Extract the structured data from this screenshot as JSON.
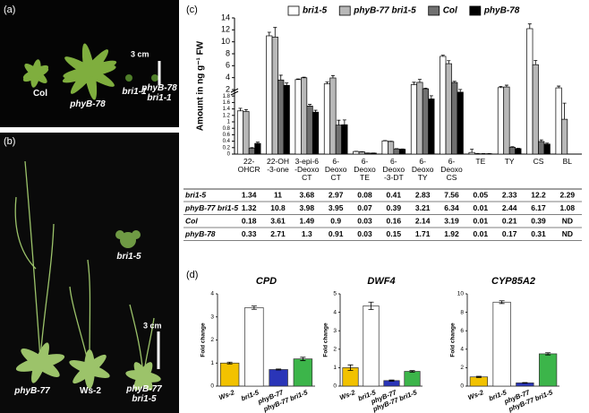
{
  "panel_a": {
    "label": "(a)",
    "plants": [
      "Col",
      "phyB-78",
      "bri1-1",
      "phyB-78\nbri1-1"
    ],
    "scale_bar": "3 cm"
  },
  "panel_b": {
    "label": "(b)",
    "plants": [
      "bri1-5",
      "phyB-77",
      "Ws-2",
      "phyB-77\nbri1-5"
    ],
    "scale_bar": "3 cm"
  },
  "panel_c_label": "(c)",
  "panel_d_label": "(d)",
  "chart_data": [
    {
      "type": "broken-bar",
      "ylabel": "Amount in ng g⁻¹ FW",
      "legend": "top",
      "categories": [
        "22-\nOHCR",
        "22-OH\n-3-one",
        "3-epi-6\n-Deoxo\nCT",
        "6-\nDeoxo\nCT",
        "6-\nDeoxo\nTE",
        "6-\nDeoxo\n-3-DT",
        "6-\nDeoxo\nTY",
        "6-\nDeoxo\nCS",
        "TE",
        "TY",
        "CS",
        "BL"
      ],
      "ylim": [
        0,
        14
      ],
      "axis_break": 2,
      "yticks_lower": [
        0,
        0.2,
        0.4,
        0.6,
        0.8,
        1,
        1.2,
        1.4,
        1.6,
        1.8
      ],
      "yticks_upper": [
        2,
        4,
        6,
        8,
        10,
        12,
        14
      ],
      "series": [
        {
          "name": "bri1-5",
          "color": "#ffffff",
          "values": [
            1.34,
            11,
            3.68,
            2.97,
            0.08,
            0.41,
            2.83,
            7.56,
            0.05,
            2.33,
            12.2,
            2.29
          ],
          "errors": [
            0.08,
            0.6,
            0.1,
            0.3,
            0.005,
            0.01,
            0.4,
            0.2,
            0.1,
            0.2,
            0.8,
            0.3
          ]
        },
        {
          "name": "phyB-77 bri1-5",
          "color": "#b8b8b8",
          "values": [
            1.32,
            10.8,
            3.98,
            3.95,
            0.07,
            0.39,
            3.21,
            6.34,
            0.01,
            2.44,
            6.17,
            1.08
          ],
          "errors": [
            0.06,
            1.6,
            0.1,
            0.4,
            0.005,
            0.01,
            0.5,
            0.5,
            0.01,
            0.3,
            0.7,
            0.5
          ]
        },
        {
          "name": "Col",
          "color": "#707070",
          "values": [
            0.18,
            3.61,
            1.49,
            0.9,
            0.03,
            0.16,
            2.14,
            3.19,
            0.01,
            0.21,
            0.39,
            null
          ],
          "value_labels": [
            "0.18",
            "3.61",
            "1.49",
            "0.9",
            "0.03",
            "0.16",
            "2.14",
            "3.19",
            "0.01",
            "0.21",
            "0.39",
            "ND"
          ],
          "errors": [
            0.02,
            0.8,
            0.05,
            0.15,
            0.003,
            0.01,
            0.1,
            0.2,
            0.005,
            0.02,
            0.05,
            null
          ]
        },
        {
          "name": "phyB-78",
          "color": "#000000",
          "values": [
            0.33,
            2.71,
            1.3,
            0.91,
            0.03,
            0.15,
            1.71,
            1.92,
            0.01,
            0.17,
            0.31,
            null
          ],
          "value_labels": [
            "0.33",
            "2.71",
            "1.3",
            "0.91",
            "0.03",
            "0.15",
            "1.71",
            "1.92",
            "0.01",
            "0.17",
            "0.31",
            "ND"
          ],
          "errors": [
            0.04,
            0.4,
            0.06,
            0.15,
            0.003,
            0.01,
            0.1,
            0.1,
            0.005,
            0.01,
            0.03,
            null
          ]
        }
      ]
    },
    {
      "type": "bar",
      "title": "CPD",
      "ylabel": "Fold change",
      "categories": [
        "Ws-2",
        "bri1-5",
        "phyB-77",
        "phyB-77 bri1-5"
      ],
      "values": [
        1,
        3.4,
        0.72,
        1.18
      ],
      "errors": [
        0.04,
        0.07,
        0.02,
        0.07
      ],
      "colors": [
        "#f2c200",
        "#ffffff",
        "#2a35b8",
        "#3cb54a"
      ],
      "ylim": [
        0,
        4
      ],
      "yticks": [
        0,
        1,
        2,
        3,
        4
      ]
    },
    {
      "type": "bar",
      "title": "DWF4",
      "ylabel": "Fold change",
      "categories": [
        "Ws-2",
        "bri1-5",
        "phyB-77",
        "phyB-77 bri1-5"
      ],
      "values": [
        1,
        4.35,
        0.3,
        0.8
      ],
      "errors": [
        0.15,
        0.2,
        0.03,
        0.04
      ],
      "colors": [
        "#f2c200",
        "#ffffff",
        "#2a35b8",
        "#3cb54a"
      ],
      "ylim": [
        0,
        5
      ],
      "yticks": [
        0,
        1,
        2,
        3,
        4,
        5
      ]
    },
    {
      "type": "bar",
      "title": "CYP85A2",
      "ylabel": "Fold change",
      "categories": [
        "Ws-2",
        "bri1-5",
        "phyB-77",
        "phyB-77 bri1-5"
      ],
      "values": [
        1,
        9.1,
        0.35,
        3.5
      ],
      "errors": [
        0.06,
        0.15,
        0.03,
        0.12
      ],
      "colors": [
        "#f2c200",
        "#ffffff",
        "#2a35b8",
        "#3cb54a"
      ],
      "ylim": [
        0,
        10
      ],
      "yticks": [
        0,
        2,
        4,
        6,
        8,
        10
      ]
    }
  ]
}
